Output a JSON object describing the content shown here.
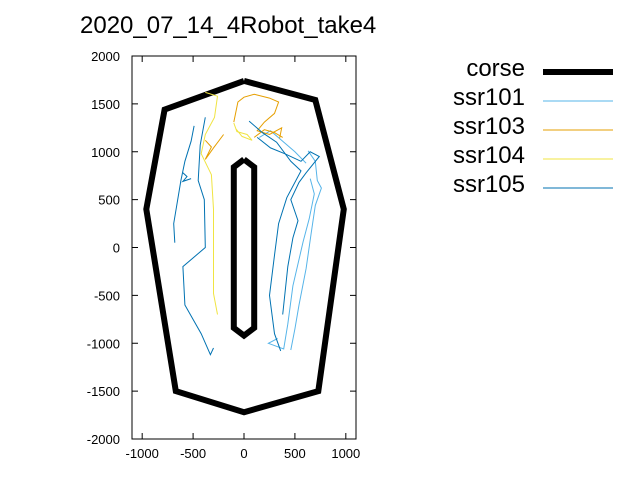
{
  "chart_data": {
    "type": "line",
    "title": "2020_07_14_4Robot_take4",
    "xlabel": "",
    "ylabel": "",
    "xlim": [
      -1100,
      1100
    ],
    "ylim": [
      -2000,
      2000
    ],
    "xticks": [
      -1000,
      -500,
      0,
      500,
      1000
    ],
    "yticks": [
      -2000,
      -1500,
      -1000,
      -500,
      0,
      500,
      1000,
      1500,
      2000
    ],
    "grid": false,
    "legend_position": "top-right-outside",
    "series": [
      {
        "name": "corse",
        "color": "#000000",
        "paths": [
          [
            [
              0,
              1740
            ],
            [
              700,
              1540
            ],
            [
              980,
              400
            ],
            [
              730,
              -1500
            ],
            [
              0,
              -1720
            ],
            [
              -670,
              -1500
            ],
            [
              -960,
              400
            ],
            [
              -780,
              1440
            ],
            [
              0,
              1740
            ]
          ],
          [
            [
              0,
              920
            ],
            [
              100,
              840
            ],
            [
              100,
              -840
            ],
            [
              0,
              -920
            ],
            [
              -100,
              -840
            ],
            [
              -100,
              840
            ],
            [
              0,
              920
            ]
          ]
        ]
      },
      {
        "name": "ssr101",
        "color": "#56b4e9",
        "paths": [
          [
            [
              650,
              720
            ],
            [
              690,
              560
            ],
            [
              640,
              300
            ],
            [
              580,
              60
            ],
            [
              480,
              -400
            ],
            [
              430,
              -800
            ],
            [
              390,
              -1060
            ],
            [
              240,
              -1000
            ],
            [
              330,
              -950
            ]
          ],
          [
            [
              630,
              1010
            ],
            [
              700,
              900
            ],
            [
              720,
              700
            ],
            [
              760,
              620
            ],
            [
              700,
              440
            ],
            [
              660,
              150
            ],
            [
              610,
              -220
            ],
            [
              540,
              -600
            ],
            [
              500,
              -850
            ],
            [
              460,
              -1070
            ]
          ],
          [
            [
              150,
              1150
            ],
            [
              260,
              1220
            ],
            [
              380,
              1110
            ],
            [
              500,
              1000
            ],
            [
              610,
              880
            ]
          ]
        ]
      },
      {
        "name": "ssr103",
        "color": "#e69f00",
        "paths": [
          [
            [
              -100,
              1310
            ],
            [
              -60,
              1520
            ],
            [
              0,
              1570
            ],
            [
              100,
              1600
            ],
            [
              250,
              1560
            ],
            [
              340,
              1520
            ],
            [
              300,
              1400
            ],
            [
              200,
              1310
            ],
            [
              130,
              1220
            ],
            [
              250,
              1180
            ],
            [
              370,
              1250
            ],
            [
              350,
              1140
            ]
          ],
          [
            [
              -380,
              1120
            ],
            [
              -320,
              1050
            ],
            [
              -380,
              920
            ],
            [
              -300,
              1040
            ],
            [
              -200,
              1180
            ]
          ],
          [
            [
              100,
              1150
            ],
            [
              200,
              1230
            ],
            [
              300,
              1200
            ],
            [
              380,
              1150
            ]
          ]
        ]
      },
      {
        "name": "ssr104",
        "color": "#f0e442",
        "paths": [
          [
            [
              -380,
              1620
            ],
            [
              -260,
              1580
            ],
            [
              -290,
              1360
            ],
            [
              -380,
              1180
            ],
            [
              -420,
              980
            ],
            [
              -320,
              760
            ],
            [
              -300,
              400
            ],
            [
              -300,
              -480
            ],
            [
              -260,
              -700
            ]
          ],
          [
            [
              -100,
              1300
            ],
            [
              -70,
              1210
            ],
            [
              30,
              1180
            ],
            [
              80,
              1120
            ],
            [
              -20,
              1160
            ],
            [
              -80,
              1240
            ]
          ]
        ]
      },
      {
        "name": "ssr105",
        "color": "#0072b2",
        "paths": [
          [
            [
              -490,
              1270
            ],
            [
              -520,
              1110
            ],
            [
              -580,
              900
            ],
            [
              -620,
              700
            ],
            [
              -690,
              250
            ],
            [
              -680,
              50
            ]
          ],
          [
            [
              -600,
              780
            ],
            [
              -560,
              740
            ],
            [
              -600,
              690
            ],
            [
              -520,
              720
            ]
          ],
          [
            [
              -380,
              1360
            ],
            [
              -430,
              1070
            ],
            [
              -450,
              700
            ],
            [
              -390,
              500
            ],
            [
              -380,
              0
            ],
            [
              -600,
              -200
            ],
            [
              -580,
              -600
            ],
            [
              -420,
              -900
            ],
            [
              -330,
              -1120
            ],
            [
              -300,
              -1050
            ]
          ],
          [
            [
              50,
              1320
            ],
            [
              180,
              1200
            ],
            [
              320,
              1100
            ],
            [
              460,
              900
            ],
            [
              560,
              800
            ],
            [
              420,
              520
            ],
            [
              340,
              250
            ],
            [
              300,
              -80
            ],
            [
              250,
              -500
            ],
            [
              300,
              -900
            ],
            [
              360,
              -1080
            ],
            [
              340,
              -1020
            ]
          ],
          [
            [
              130,
              1150
            ],
            [
              260,
              1040
            ],
            [
              400,
              980
            ],
            [
              560,
              900
            ],
            [
              650,
              1000
            ],
            [
              740,
              950
            ],
            [
              610,
              780
            ],
            [
              540,
              680
            ],
            [
              460,
              500
            ],
            [
              530,
              280
            ],
            [
              480,
              100
            ],
            [
              430,
              -200
            ],
            [
              380,
              -700
            ]
          ]
        ]
      }
    ]
  }
}
